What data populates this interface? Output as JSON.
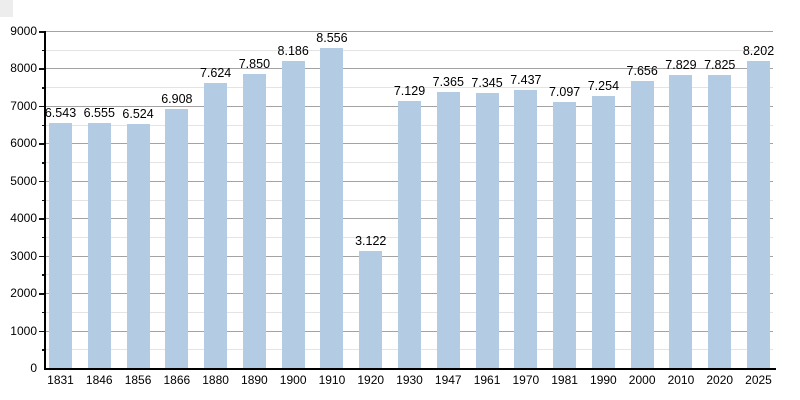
{
  "chart_data": {
    "type": "bar",
    "title": "",
    "xlabel": "",
    "ylabel": "",
    "categories": [
      "1831",
      "1846",
      "1856",
      "1866",
      "1880",
      "1890",
      "1900",
      "1910",
      "1920",
      "1930",
      "1947",
      "1961",
      "1970",
      "1981",
      "1990",
      "2000",
      "2010",
      "2020",
      "2025"
    ],
    "values": [
      6543,
      6555,
      6524,
      6908,
      7624,
      7850,
      8186,
      8556,
      3122,
      7129,
      7365,
      7345,
      7437,
      7097,
      7254,
      7656,
      7829,
      7825,
      8202
    ],
    "bar_labels": [
      "6.543",
      "6.555",
      "6.524",
      "6.908",
      "7.624",
      "7.850",
      "8.186",
      "8.556",
      "3.122",
      "7.129",
      "7.365",
      "7.345",
      "7.437",
      "7.097",
      "7.254",
      "7.656",
      "7.829",
      "7.825",
      "8.202"
    ],
    "ylim": [
      0,
      9000
    ],
    "ytick_step": 1000,
    "ytick_minor_step": 500,
    "ytick_labels": [
      "0",
      "1000",
      "2000",
      "3000",
      "4000",
      "5000",
      "6000",
      "7000",
      "8000",
      "9000"
    ],
    "grid": "on",
    "legend": "none",
    "colors": {
      "bar_fill": "#b3cce4",
      "major_grid": "#a3a3a3",
      "minor_grid": "#e4e4e4",
      "axis": "#000000",
      "text": "#000000",
      "background": "#ffffff"
    }
  }
}
